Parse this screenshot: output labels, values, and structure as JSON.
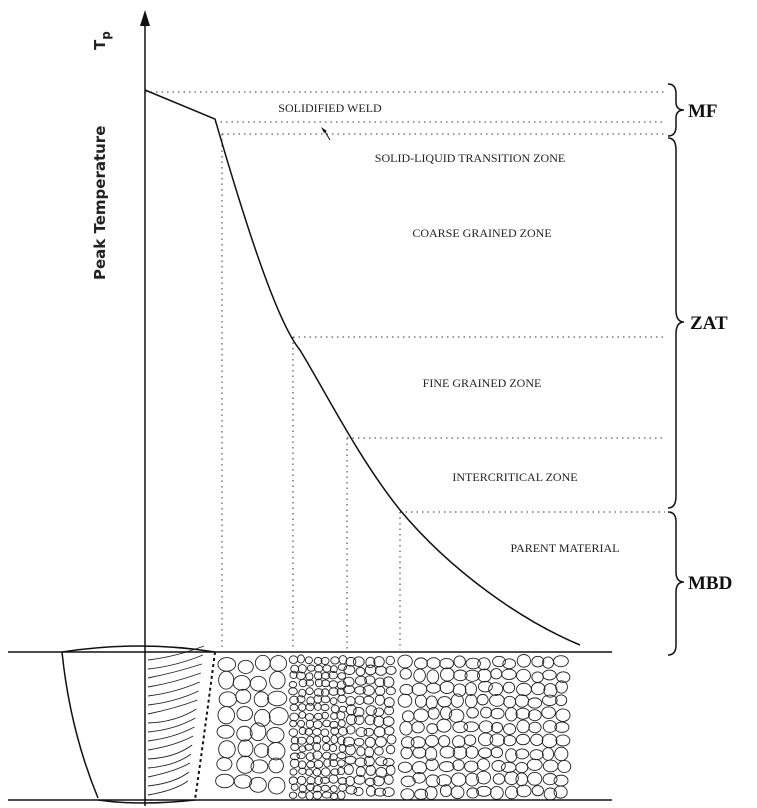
{
  "axis_label": "Peak Temperature",
  "axis_symbol": {
    "main": "T",
    "sub": "p"
  },
  "zones": [
    "SOLIDIFIED WELD",
    "SOLID-LIQUID TRANSITION ZONE",
    "COARSE GRAINED ZONE",
    "FINE GRAINED ZONE",
    "INTERCRITICAL ZONE",
    "PARENT MATERIAL"
  ],
  "braces": [
    "MF",
    "ZAT",
    "MBD"
  ]
}
